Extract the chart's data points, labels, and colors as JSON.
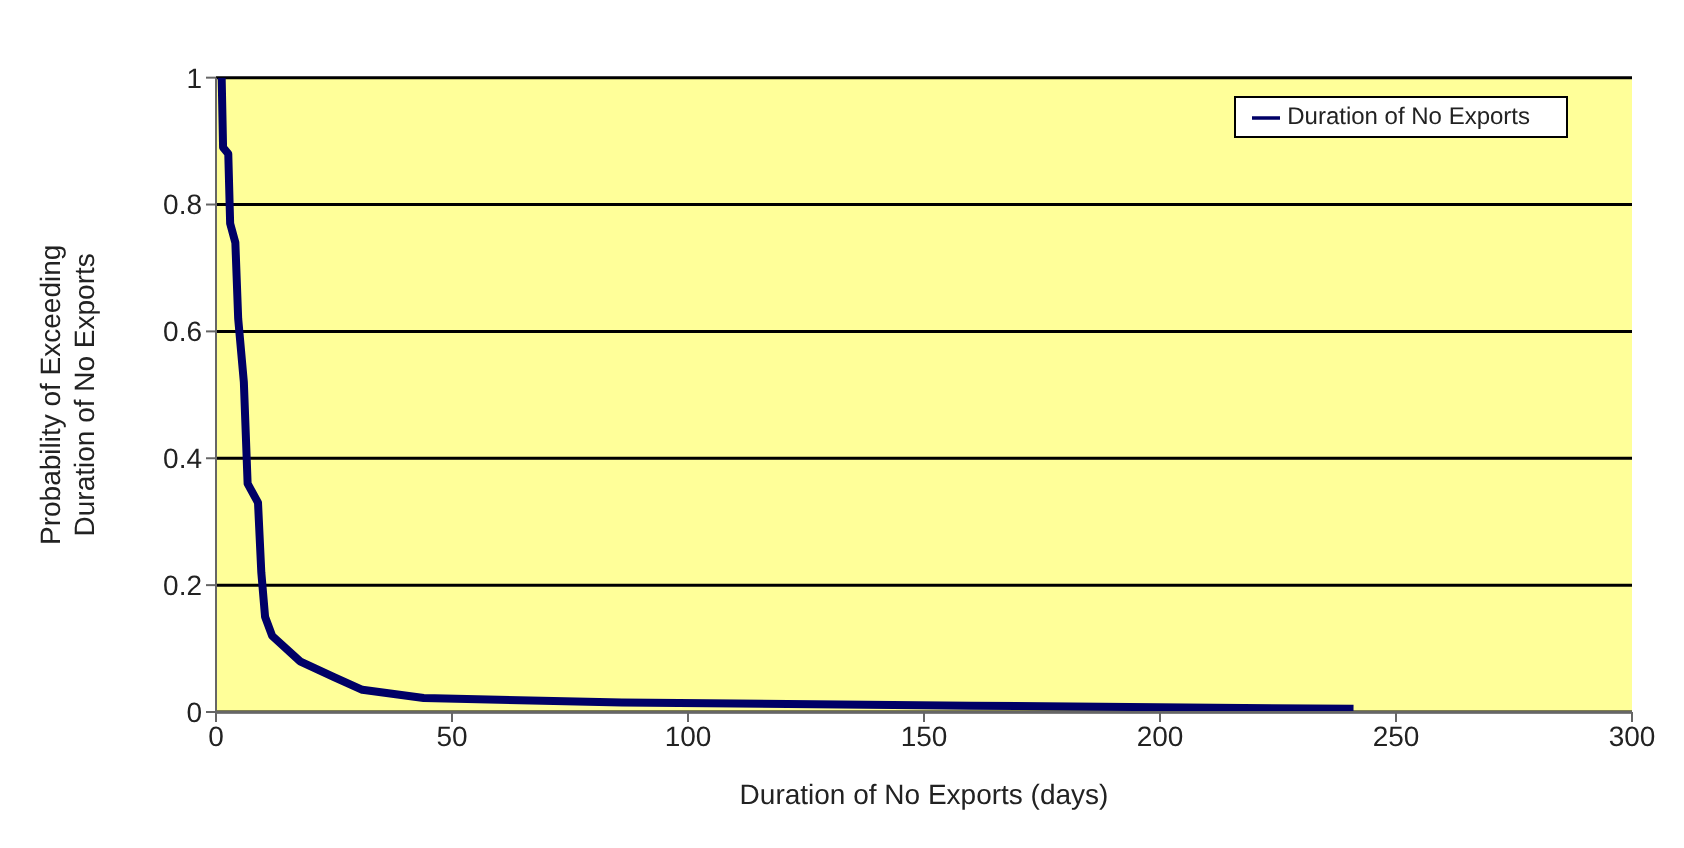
{
  "chart_data": {
    "type": "line",
    "xlabel": "Duration of No Exports (days)",
    "ylabel": "Probability of Exceeding Duration of No Exports",
    "x": [
      1.2,
      1.5,
      2.6,
      3,
      4.1,
      4.7,
      5.9,
      6.7,
      8.9,
      9.6,
      10.4,
      11.9,
      17.8,
      25,
      31,
      44,
      86,
      160,
      241
    ],
    "series": [
      {
        "name": "Duration of No Exports",
        "color": "#000066",
        "values": [
          1,
          0.89,
          0.88,
          0.77,
          0.74,
          0.62,
          0.52,
          0.36,
          0.33,
          0.22,
          0.15,
          0.12,
          0.08,
          0.055,
          0.035,
          0.022,
          0.015,
          0.01,
          0.005
        ]
      }
    ],
    "xlim": [
      0,
      300
    ],
    "xticks": [
      0,
      50,
      100,
      150,
      200,
      250,
      300
    ],
    "ylim": [
      0,
      1
    ],
    "yticks": [
      0,
      0.2,
      0.4,
      0.6,
      0.8,
      1
    ],
    "grid": "y",
    "legend": "top right",
    "marker": "none",
    "line_style": "solid"
  }
}
